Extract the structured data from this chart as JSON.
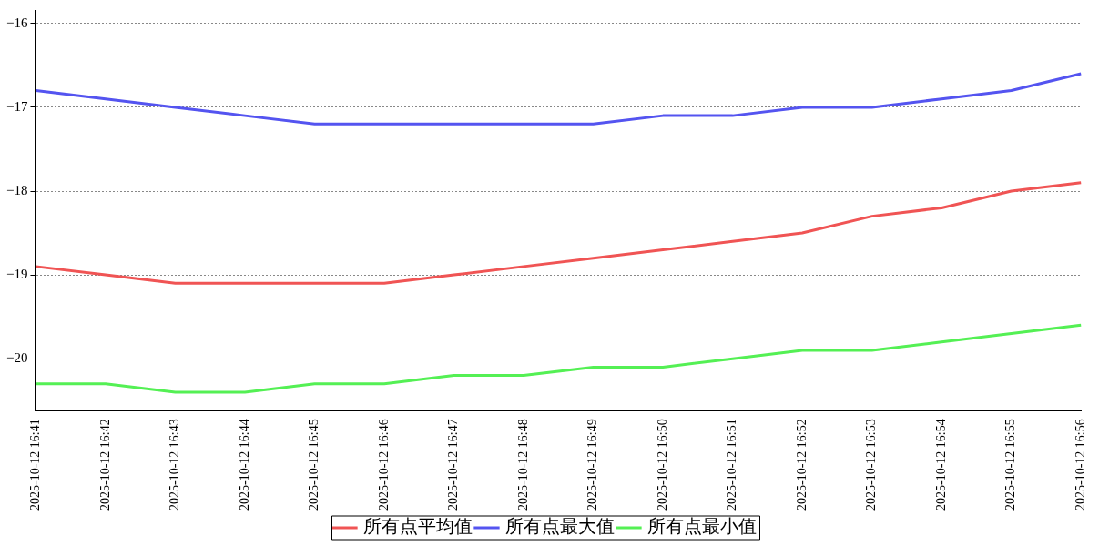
{
  "chart_data": {
    "type": "line",
    "categories": [
      "2025-10-12 16:41",
      "2025-10-12 16:42",
      "2025-10-12 16:43",
      "2025-10-12 16:44",
      "2025-10-12 16:45",
      "2025-10-12 16:46",
      "2025-10-12 16:47",
      "2025-10-12 16:48",
      "2025-10-12 16:49",
      "2025-10-12 16:50",
      "2025-10-12 16:51",
      "2025-10-12 16:52",
      "2025-10-12 16:53",
      "2025-10-12 16:54",
      "2025-10-12 16:55",
      "2025-10-12 16:56"
    ],
    "series": [
      {
        "name": "所有点平均值",
        "color": "#f05454",
        "values": [
          -18.9,
          -19.0,
          -19.1,
          -19.1,
          -19.1,
          -19.1,
          -19.0,
          -18.9,
          -18.8,
          -18.7,
          -18.6,
          -18.5,
          -18.3,
          -18.2,
          -18.0,
          -17.9
        ]
      },
      {
        "name": "所有点最大值",
        "color": "#5454f0",
        "values": [
          -16.8,
          -16.9,
          -17.0,
          -17.1,
          -17.2,
          -17.2,
          -17.2,
          -17.2,
          -17.2,
          -17.1,
          -17.1,
          -17.0,
          -17.0,
          -16.9,
          -16.8,
          -16.6
        ]
      },
      {
        "name": "所有点最小值",
        "color": "#54f054",
        "values": [
          -20.3,
          -20.3,
          -20.4,
          -20.4,
          -20.3,
          -20.3,
          -20.2,
          -20.2,
          -20.1,
          -20.1,
          -20.0,
          -19.9,
          -19.9,
          -19.8,
          -19.7,
          -19.6
        ]
      }
    ],
    "ylim": [
      -20.62,
      -15.85
    ],
    "yticks": [
      -20,
      -19,
      -18,
      -17,
      -16
    ],
    "grid": "y",
    "legend": "bottom",
    "marker": "none",
    "line_style": "solid"
  }
}
